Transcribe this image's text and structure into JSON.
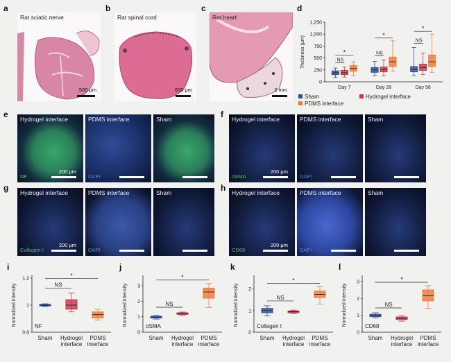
{
  "panel_labels": {
    "a": "a",
    "b": "b",
    "c": "c",
    "d": "d",
    "e": "e",
    "f": "f",
    "g": "g",
    "h": "h",
    "i": "i",
    "j": "j",
    "k": "k",
    "l": "l"
  },
  "histology": {
    "a": {
      "title": "Rat sciatic nerve",
      "scale": "500 μm"
    },
    "b": {
      "title": "Rat spinal cord",
      "scale": "600 μm"
    },
    "c": {
      "title": "Rat heart",
      "scale": "2 mm"
    }
  },
  "fluorescence": {
    "e": {
      "tiles": [
        "Hydrogel interface",
        "PDMS interface",
        "Sham"
      ],
      "stain1": "NF",
      "stain2": "DAPI",
      "scale": "200 μm"
    },
    "f": {
      "tiles": [
        "Hydrogel interface",
        "PDMS interface",
        "Sham"
      ],
      "stain1": "αSMA",
      "stain2": "DAPI",
      "scale": "200 μm"
    },
    "g": {
      "tiles": [
        "Hydrogel interface",
        "PDMS interface",
        "Sham"
      ],
      "stain1": "Collagen I",
      "stain2": "DAPI",
      "scale": "200 μm"
    },
    "h": {
      "tiles": [
        "Hydrogel interface",
        "PDMS interface",
        "Sham"
      ],
      "stain1": "CD68",
      "stain2": "DAPI",
      "scale": "200 μm"
    }
  },
  "colors": {
    "sham": "#2f4f9a",
    "hydrogel": "#c8344a",
    "pdms": "#ee7b3a",
    "nf": "#3ec46a",
    "dapi": "#5a86e6"
  },
  "chart_data": [
    {
      "id": "d",
      "type": "box",
      "ylabel": "Thickness (μm)",
      "yticks": [
        "0",
        "250",
        "500",
        "750",
        "1,000",
        "1,250"
      ],
      "ylim": [
        0,
        1250
      ],
      "categories": [
        "Day 7",
        "Day 28",
        "Day 56"
      ],
      "legend": [
        "Sham",
        "Hydrogel interface",
        "PDMS interface"
      ],
      "series": [
        {
          "name": "Sham",
          "boxes": [
            {
              "min": 90,
              "q1": 150,
              "med": 190,
              "q3": 230,
              "max": 290
            },
            {
              "min": 130,
              "q1": 200,
              "med": 250,
              "q3": 300,
              "max": 430
            },
            {
              "min": 130,
              "q1": 210,
              "med": 260,
              "q3": 320,
              "max": 720
            }
          ]
        },
        {
          "name": "Hydrogel interface",
          "boxes": [
            {
              "min": 100,
              "q1": 150,
              "med": 190,
              "q3": 240,
              "max": 310
            },
            {
              "min": 130,
              "q1": 210,
              "med": 260,
              "q3": 310,
              "max": 460
            },
            {
              "min": 150,
              "q1": 240,
              "med": 300,
              "q3": 370,
              "max": 600
            }
          ]
        },
        {
          "name": "PDMS interface",
          "boxes": [
            {
              "min": 130,
              "q1": 220,
              "med": 280,
              "q3": 340,
              "max": 420
            },
            {
              "min": 220,
              "q1": 320,
              "med": 420,
              "q3": 520,
              "max": 860
            },
            {
              "min": 200,
              "q1": 320,
              "med": 420,
              "q3": 560,
              "max": 1000
            }
          ]
        }
      ],
      "annotations": [
        {
          "day": 0,
          "ns": "NS",
          "star": "*"
        },
        {
          "day": 1,
          "ns": "NS",
          "star": "*"
        },
        {
          "day": 2,
          "ns": "NS",
          "star": "*"
        }
      ]
    },
    {
      "id": "i",
      "type": "box",
      "stain": "NF",
      "ylabel": "Normalized intensity",
      "yticks": [
        "0.8",
        "1",
        "1.2"
      ],
      "ylim": [
        0.8,
        1.2
      ],
      "categories": [
        "Sham",
        "Hydrogel\ninterface",
        "PDMS\ninterface"
      ],
      "boxes": [
        {
          "min": 0.99,
          "q1": 0.995,
          "med": 1.0,
          "q3": 1.005,
          "max": 1.01
        },
        {
          "min": 0.95,
          "q1": 0.97,
          "med": 1.0,
          "q3": 1.04,
          "max": 1.09
        },
        {
          "min": 0.89,
          "q1": 0.905,
          "med": 0.93,
          "q3": 0.95,
          "max": 0.97
        }
      ],
      "annotations": {
        "ns": "NS",
        "star": "*"
      }
    },
    {
      "id": "j",
      "type": "box",
      "stain": "αSMA",
      "ylabel": "Normalized intensity",
      "yticks": [
        "0",
        "1",
        "2",
        "3"
      ],
      "ylim": [
        0,
        3.5
      ],
      "categories": [
        "Sham",
        "Hydrogel\ninterface",
        "PDMS\ninterface"
      ],
      "boxes": [
        {
          "min": 0.85,
          "q1": 0.92,
          "med": 0.97,
          "q3": 1.03,
          "max": 1.08
        },
        {
          "min": 1.1,
          "q1": 1.15,
          "med": 1.2,
          "q3": 1.25,
          "max": 1.3
        },
        {
          "min": 1.6,
          "q1": 2.2,
          "med": 2.6,
          "q3": 2.85,
          "max": 3.15
        }
      ],
      "annotations": {
        "ns": "NS",
        "star": "*"
      }
    },
    {
      "id": "k",
      "type": "box",
      "stain": "Collagen I",
      "ylabel": "Normalized intensity",
      "yticks": [
        "0",
        "1",
        "2"
      ],
      "ylim": [
        0,
        2.5
      ],
      "categories": [
        "Sham",
        "Hydrogel\ninterface",
        "PDMS\ninterface"
      ],
      "boxes": [
        {
          "min": 0.75,
          "q1": 0.9,
          "med": 1.0,
          "q3": 1.1,
          "max": 1.22
        },
        {
          "min": 0.86,
          "q1": 0.9,
          "med": 0.95,
          "q3": 0.98,
          "max": 1.02
        },
        {
          "min": 1.3,
          "q1": 1.6,
          "med": 1.75,
          "q3": 1.9,
          "max": 2.1
        }
      ],
      "annotations": {
        "ns": "NS",
        "star": "*"
      }
    },
    {
      "id": "l",
      "type": "box",
      "stain": "CD68",
      "ylabel": "Normalized intensity",
      "yticks": [
        "0",
        "1",
        "2",
        "3"
      ],
      "ylim": [
        0,
        3.2
      ],
      "categories": [
        "Sham",
        "Hydrogel\ninterface",
        "PDMS\ninterface"
      ],
      "boxes": [
        {
          "min": 0.85,
          "q1": 0.92,
          "med": 1.0,
          "q3": 1.06,
          "max": 1.15
        },
        {
          "min": 0.65,
          "q1": 0.75,
          "med": 0.82,
          "q3": 0.9,
          "max": 0.96
        },
        {
          "min": 1.4,
          "q1": 1.85,
          "med": 2.15,
          "q3": 2.5,
          "max": 2.75
        }
      ],
      "annotations": {
        "ns": "NS",
        "star": "*"
      }
    }
  ]
}
